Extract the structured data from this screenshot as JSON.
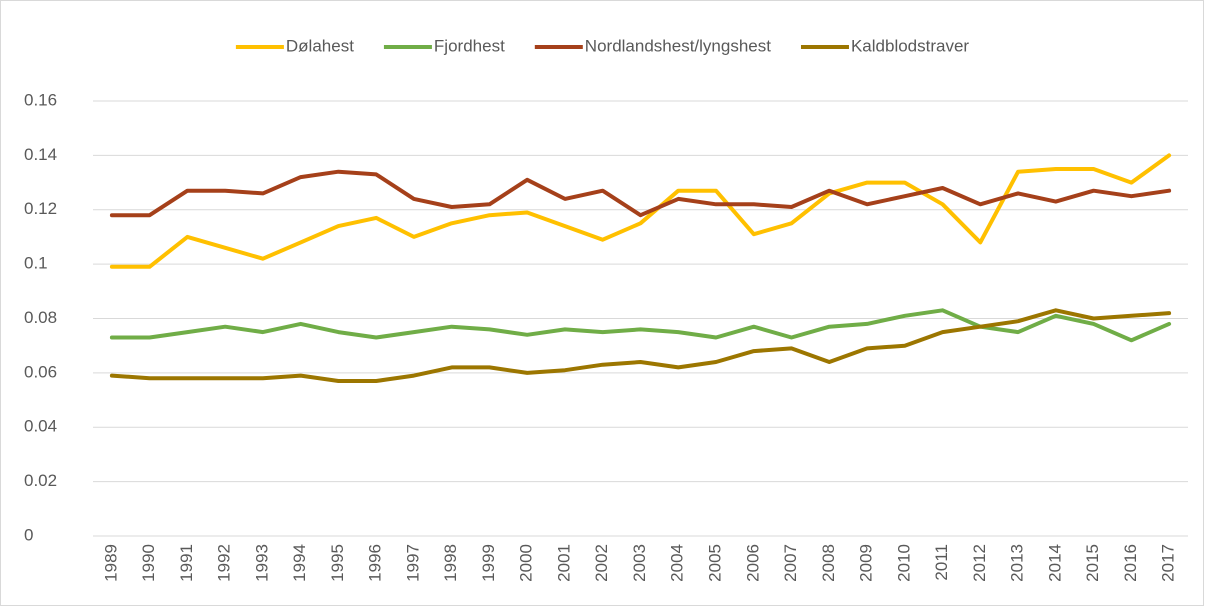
{
  "chart_data": {
    "type": "line",
    "categories": [
      "1989",
      "1990",
      "1991",
      "1992",
      "1993",
      "1994",
      "1995",
      "1996",
      "1997",
      "1998",
      "1999",
      "2000",
      "2001",
      "2002",
      "2003",
      "2004",
      "2005",
      "2006",
      "2007",
      "2008",
      "2009",
      "2010",
      "2011",
      "2012",
      "2013",
      "2014",
      "2015",
      "2016",
      "2017"
    ],
    "series": [
      {
        "name": "Dølahest",
        "color": "#ffc000",
        "values": [
          0.099,
          0.099,
          0.11,
          0.106,
          0.102,
          0.108,
          0.114,
          0.117,
          0.11,
          0.115,
          0.118,
          0.119,
          0.114,
          0.109,
          0.115,
          0.127,
          0.127,
          0.111,
          0.115,
          0.126,
          0.13,
          0.13,
          0.122,
          0.108,
          0.134,
          0.135,
          0.135,
          0.13,
          0.14
        ]
      },
      {
        "name": "Fjordhest",
        "color": "#70ad47",
        "values": [
          0.073,
          0.073,
          0.075,
          0.077,
          0.075,
          0.078,
          0.075,
          0.073,
          0.075,
          0.077,
          0.076,
          0.074,
          0.076,
          0.075,
          0.076,
          0.075,
          0.073,
          0.077,
          0.073,
          0.077,
          0.078,
          0.081,
          0.083,
          0.077,
          0.075,
          0.081,
          0.078,
          0.072,
          0.078
        ]
      },
      {
        "name": "Nordlandshest/lyngshest",
        "color": "#a5401a",
        "values": [
          0.118,
          0.118,
          0.127,
          0.127,
          0.126,
          0.132,
          0.134,
          0.133,
          0.124,
          0.121,
          0.122,
          0.131,
          0.124,
          0.127,
          0.118,
          0.124,
          0.122,
          0.122,
          0.121,
          0.127,
          0.122,
          0.125,
          0.128,
          0.122,
          0.126,
          0.123,
          0.127,
          0.125,
          0.127
        ]
      },
      {
        "name": "Kaldblodstraver",
        "color": "#9c7600",
        "values": [
          0.059,
          0.058,
          0.058,
          0.058,
          0.058,
          0.059,
          0.057,
          0.057,
          0.059,
          0.062,
          0.062,
          0.06,
          0.061,
          0.063,
          0.064,
          0.062,
          0.064,
          0.068,
          0.069,
          0.064,
          0.069,
          0.07,
          0.075,
          0.077,
          0.079,
          0.083,
          0.08,
          0.081,
          0.082
        ]
      }
    ],
    "ylim": [
      0,
      0.16
    ],
    "yticks": [
      0,
      0.02,
      0.04,
      0.06,
      0.08,
      0.1,
      0.12,
      0.14,
      0.16
    ],
    "grid": true,
    "legend": "top"
  }
}
